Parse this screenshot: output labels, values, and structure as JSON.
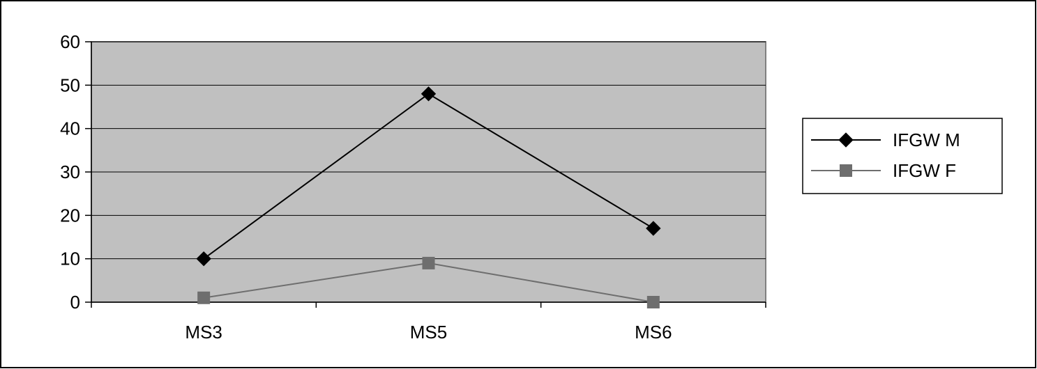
{
  "chart_data": {
    "type": "line",
    "categories": [
      "MS3",
      "MS5",
      "MS6"
    ],
    "series": [
      {
        "name": "IFGW M",
        "values": [
          10,
          48,
          17
        ],
        "color": "#000000",
        "marker": "diamond"
      },
      {
        "name": "IFGW F",
        "values": [
          1,
          9,
          0
        ],
        "color": "#6e6e6e",
        "marker": "square"
      }
    ],
    "ylim": [
      0,
      60
    ],
    "yticks": [
      "0",
      "10",
      "20",
      "30",
      "40",
      "50",
      "60"
    ],
    "title": "",
    "xlabel": "",
    "ylabel": "",
    "grid": true,
    "legend_position": "right",
    "plot_background": "#c0c0c0"
  }
}
